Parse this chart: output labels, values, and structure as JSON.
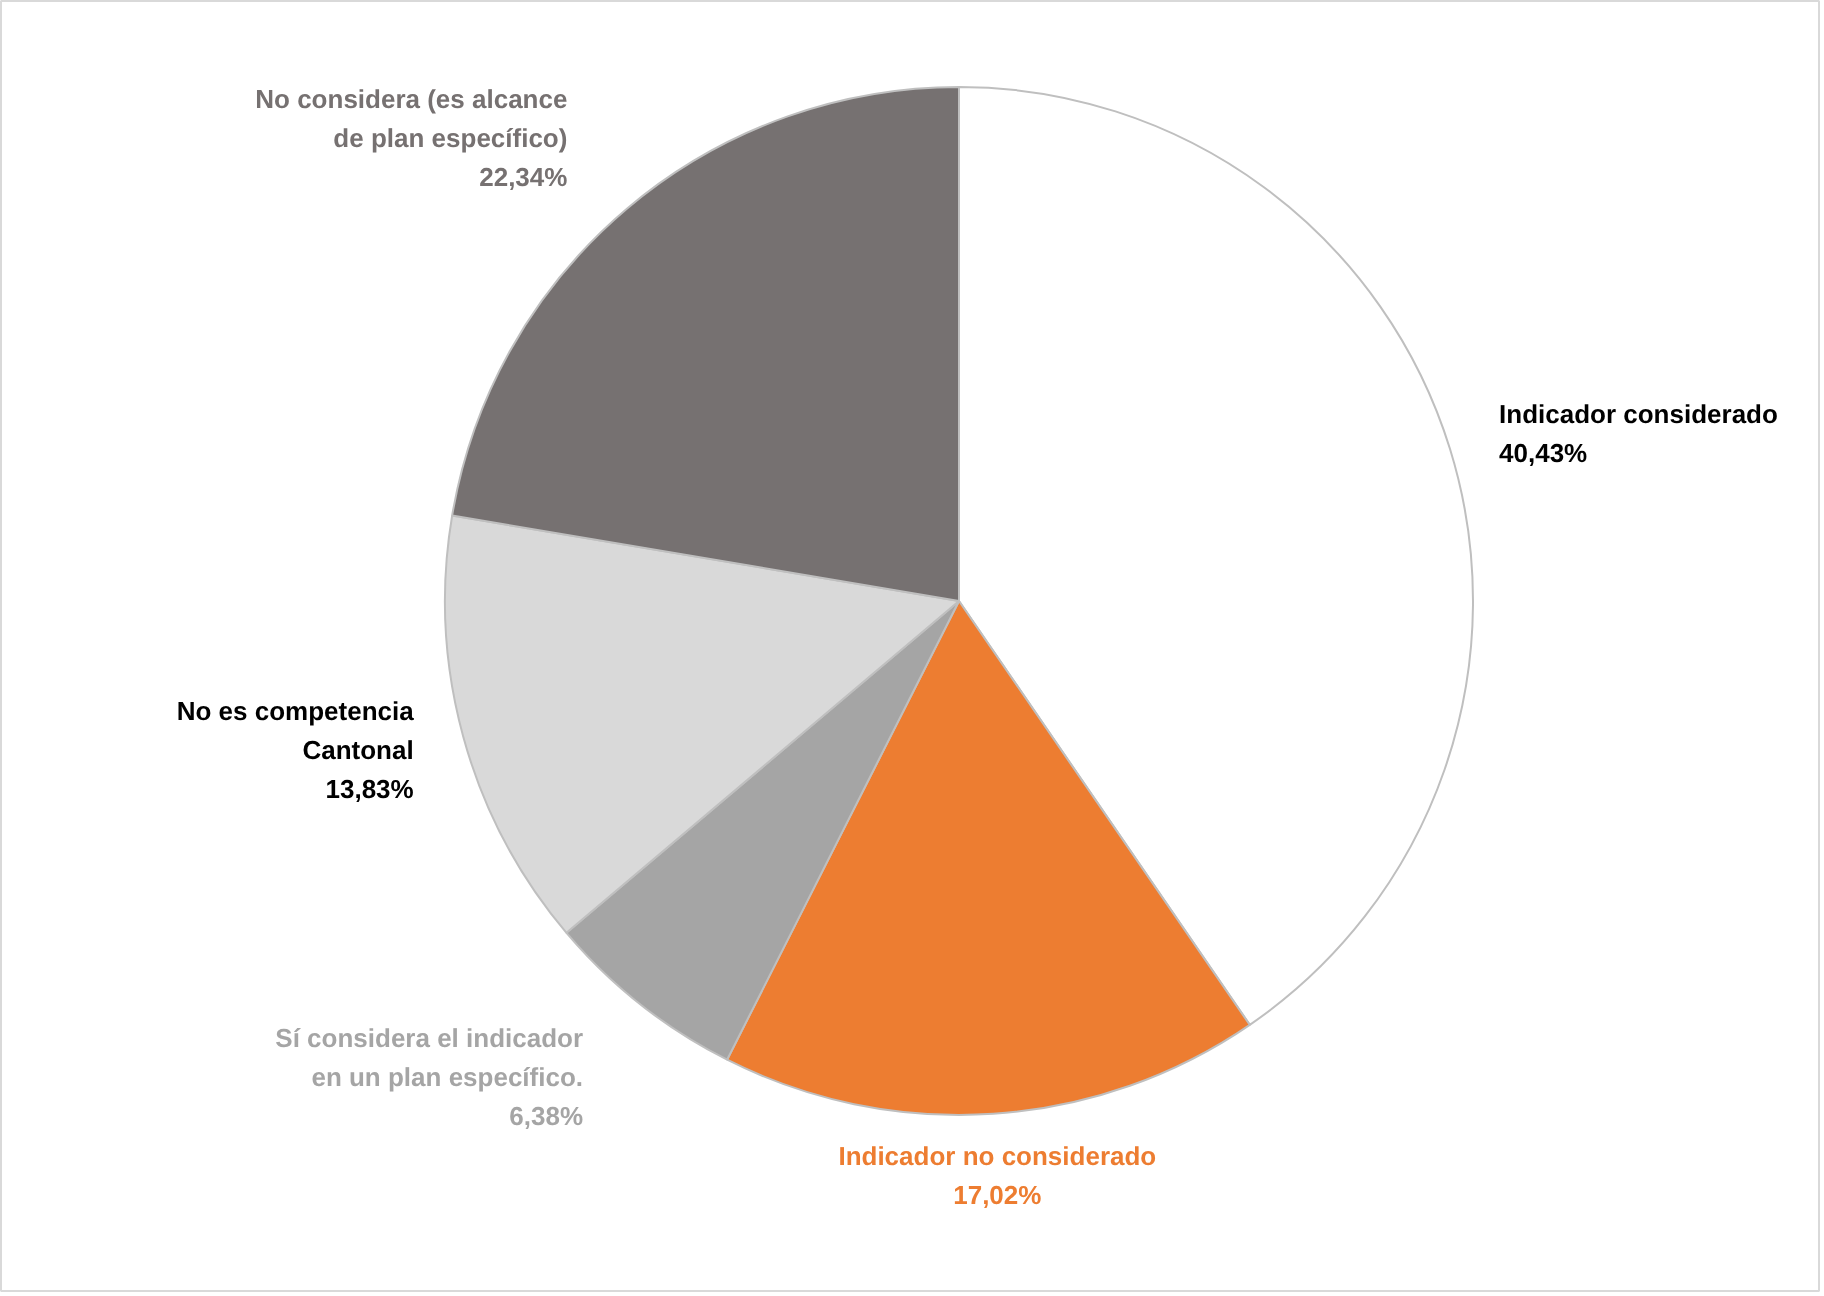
{
  "chart_data": {
    "type": "pie",
    "categories": [
      "Indicador considerado",
      "Indicador no considerado",
      "Sí considera el indicador en un plan específico.",
      "No es competencia Cantonal",
      "No considera (es alcance de plan específico)"
    ],
    "values": [
      40.43,
      17.02,
      6.38,
      13.83,
      22.34
    ],
    "colors": [
      "#ffffff",
      "#ed7d31",
      "#a5a5a5",
      "#d9d9d9",
      "#767171"
    ],
    "value_labels": [
      "40,43%",
      "17,02%",
      "6,38%",
      "13,83%",
      "22,34%"
    ],
    "legend": false
  }
}
